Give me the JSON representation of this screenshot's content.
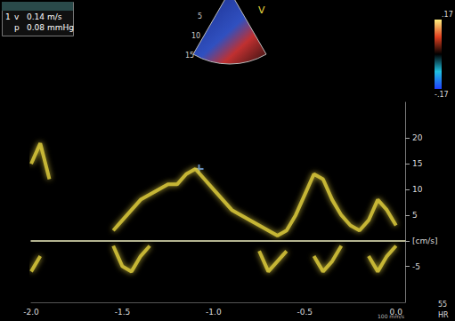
{
  "chart_data": {
    "type": "line",
    "x": [
      -2.0,
      -1.95,
      -1.9,
      -1.85,
      -1.8,
      -1.75,
      -1.7,
      -1.65,
      -1.6,
      -1.55,
      -1.5,
      -1.45,
      -1.4,
      -1.35,
      -1.3,
      -1.25,
      -1.2,
      -1.15,
      -1.1,
      -1.05,
      -1.0,
      -0.95,
      -0.9,
      -0.85,
      -0.8,
      -0.75,
      -0.7,
      -0.65,
      -0.6,
      -0.55,
      -0.5,
      -0.45,
      -0.4,
      -0.35,
      -0.3,
      -0.25,
      -0.2,
      -0.15,
      -0.1,
      -0.05,
      0.0
    ],
    "series": [
      {
        "color": "#d9c83a",
        "values": [
          15,
          19,
          12,
          null,
          null,
          null,
          null,
          null,
          null,
          2,
          4,
          6,
          8,
          9,
          10,
          11,
          11,
          13,
          14,
          12,
          10,
          8,
          6,
          5,
          4,
          3,
          2,
          1,
          2,
          5,
          9,
          13,
          12,
          8,
          5,
          3,
          2,
          4,
          8,
          6,
          3
        ]
      },
      {
        "color": "#d9c83a",
        "values": [
          -6,
          -3,
          null,
          null,
          null,
          null,
          null,
          null,
          null,
          -1,
          -5,
          -6,
          -3,
          -1,
          null,
          null,
          null,
          null,
          null,
          null,
          null,
          null,
          null,
          null,
          null,
          -2,
          -6,
          -4,
          -2,
          null,
          null,
          -3,
          -6,
          -4,
          -1,
          null,
          null,
          -3,
          -6,
          -3,
          -1
        ]
      }
    ],
    "cursor": {
      "x": -1.08,
      "y": 14,
      "color": "#6fa8ff"
    },
    "xlim": [
      -2.0,
      0.05
    ],
    "xticks": [
      {
        "value": -2,
        "label": "-2.0"
      },
      {
        "value": -1.5,
        "label": "-1.5"
      },
      {
        "value": -1,
        "label": "-1.0"
      },
      {
        "value": -0.5,
        "label": "-0.5"
      },
      {
        "value": 0,
        "label": "0.0"
      }
    ],
    "ylim": [
      -12,
      27
    ],
    "yticks": [
      -5,
      {
        "value": 0,
        "label": "[cm/s]"
      },
      5,
      10,
      15,
      20
    ],
    "grid": false,
    "readout": {
      "index": "1",
      "rows": [
        [
          "v",
          "0.14 m/s"
        ],
        [
          "p",
          "0.08 mmHg"
        ]
      ]
    },
    "colorbar_labels": [
      ".17",
      "-.17"
    ],
    "inset_labels": [
      "5",
      "10",
      "15"
    ],
    "inset_mode": "V",
    "sweep": "100 mm/s",
    "hr_label": "HR",
    "hr": 55
  }
}
